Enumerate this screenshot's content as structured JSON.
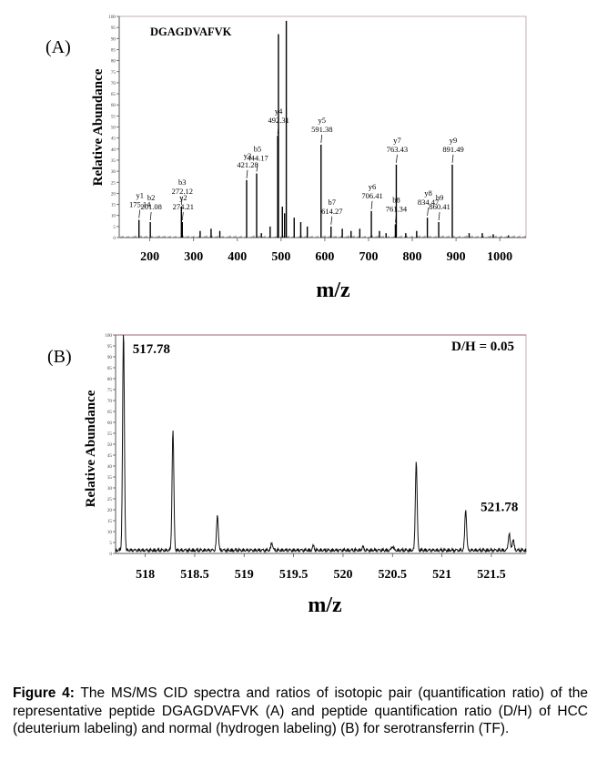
{
  "figure": {
    "caption_label": "Figure 4:",
    "caption_text": " The MS/MS CID spectra and ratios of isotopic pair (quantification ratio) of the representative peptide DGAGDVAFVK (A) and peptide quantification ratio (D/H) of HCC (deuterium labeling) and normal (hydrogen labeling) (B) for serotransferrin (TF)."
  },
  "chart_data": [
    {
      "panel": "(A)",
      "type": "bar",
      "title": "DGAGDVAFVK",
      "xlabel": "m/z",
      "ylabel": "Relative Abundance",
      "xlim": [
        130,
        1060
      ],
      "ylim": [
        0,
        100
      ],
      "xticks": [
        200,
        300,
        400,
        500,
        600,
        700,
        800,
        900,
        1000
      ],
      "yticks": [
        0,
        5,
        10,
        15,
        20,
        25,
        30,
        35,
        40,
        45,
        50,
        55,
        60,
        65,
        70,
        75,
        80,
        85,
        90,
        95,
        100
      ],
      "grid": false,
      "peaks": [
        {
          "x": 175.14,
          "y": 8
        },
        {
          "x": 201.08,
          "y": 7
        },
        {
          "x": 272.12,
          "y": 14
        },
        {
          "x": 274.21,
          "y": 7
        },
        {
          "x": 421.28,
          "y": 26
        },
        {
          "x": 444.17,
          "y": 29
        },
        {
          "x": 492.31,
          "y": 46
        },
        {
          "x": 494,
          "y": 92
        },
        {
          "x": 503,
          "y": 14
        },
        {
          "x": 508,
          "y": 11
        },
        {
          "x": 512,
          "y": 98
        },
        {
          "x": 591.38,
          "y": 42
        },
        {
          "x": 614.27,
          "y": 5
        },
        {
          "x": 706.41,
          "y": 12
        },
        {
          "x": 761.34,
          "y": 6
        },
        {
          "x": 763.43,
          "y": 33
        },
        {
          "x": 834.47,
          "y": 9
        },
        {
          "x": 860.41,
          "y": 7
        },
        {
          "x": 891.49,
          "y": 33
        },
        {
          "x": 315,
          "y": 3
        },
        {
          "x": 340,
          "y": 4
        },
        {
          "x": 360,
          "y": 3
        },
        {
          "x": 455,
          "y": 2
        },
        {
          "x": 475,
          "y": 5
        },
        {
          "x": 530,
          "y": 9
        },
        {
          "x": 545,
          "y": 7
        },
        {
          "x": 560,
          "y": 5
        },
        {
          "x": 640,
          "y": 4
        },
        {
          "x": 660,
          "y": 3
        },
        {
          "x": 680,
          "y": 4
        },
        {
          "x": 725,
          "y": 3
        },
        {
          "x": 740,
          "y": 2
        },
        {
          "x": 785,
          "y": 2
        },
        {
          "x": 810,
          "y": 3
        },
        {
          "x": 930,
          "y": 2
        },
        {
          "x": 960,
          "y": 2
        },
        {
          "x": 985,
          "y": 1.5
        },
        {
          "x": 1020,
          "y": 1
        }
      ],
      "annotations": [
        {
          "ion": "y1",
          "mz": "175.14",
          "x": 175.14
        },
        {
          "ion": "b2",
          "mz": "201.08",
          "x": 201.08
        },
        {
          "ion": "b3",
          "mz": "272.12",
          "x": 272.12
        },
        {
          "ion": "y2",
          "mz": "274.21",
          "x": 274.21
        },
        {
          "ion": "y3",
          "mz": "421.28",
          "x": 421.28
        },
        {
          "ion": "b5",
          "mz": "444.17",
          "x": 444.17
        },
        {
          "ion": "y4",
          "mz": "492.31",
          "x": 492.31
        },
        {
          "ion": "y5",
          "mz": "591.38",
          "x": 591.38
        },
        {
          "ion": "b7",
          "mz": "614.27",
          "x": 614.27
        },
        {
          "ion": "y6",
          "mz": "706.41",
          "x": 706.41
        },
        {
          "ion": "b8",
          "mz": "761.34",
          "x": 761.34
        },
        {
          "ion": "y7",
          "mz": "763.43",
          "x": 763.43
        },
        {
          "ion": "y8",
          "mz": "834.47",
          "x": 834.47
        },
        {
          "ion": "b9",
          "mz": "860.41",
          "x": 860.41
        },
        {
          "ion": "y9",
          "mz": "891.49",
          "x": 891.49
        }
      ]
    },
    {
      "panel": "(B)",
      "type": "line",
      "title": "D/H = 0.05",
      "xlabel": "m/z",
      "ylabel": "Relative Abundance",
      "xlim": [
        517.7,
        521.85
      ],
      "ylim": [
        0,
        100
      ],
      "xticks": [
        518,
        518.5,
        519,
        519.5,
        520,
        520.5,
        521,
        521.5
      ],
      "yticks": [
        0,
        5,
        10,
        15,
        20,
        25,
        30,
        35,
        40,
        45,
        50,
        55,
        60,
        65,
        70,
        75,
        80,
        85,
        90,
        95,
        100
      ],
      "grid": false,
      "peaks": [
        {
          "x": 517.78,
          "y": 100
        },
        {
          "x": 518.28,
          "y": 55
        },
        {
          "x": 518.73,
          "y": 16
        },
        {
          "x": 519.28,
          "y": 3.5
        },
        {
          "x": 519.7,
          "y": 2
        },
        {
          "x": 520.2,
          "y": 1.5
        },
        {
          "x": 520.5,
          "y": 2
        },
        {
          "x": 520.74,
          "y": 41
        },
        {
          "x": 521.24,
          "y": 19
        },
        {
          "x": 521.68,
          "y": 8
        },
        {
          "x": 521.72,
          "y": 5
        }
      ],
      "peak_labels": [
        {
          "text": "517.78",
          "x": 517.78
        },
        {
          "text": "521.78",
          "x": 521.78
        }
      ]
    }
  ]
}
